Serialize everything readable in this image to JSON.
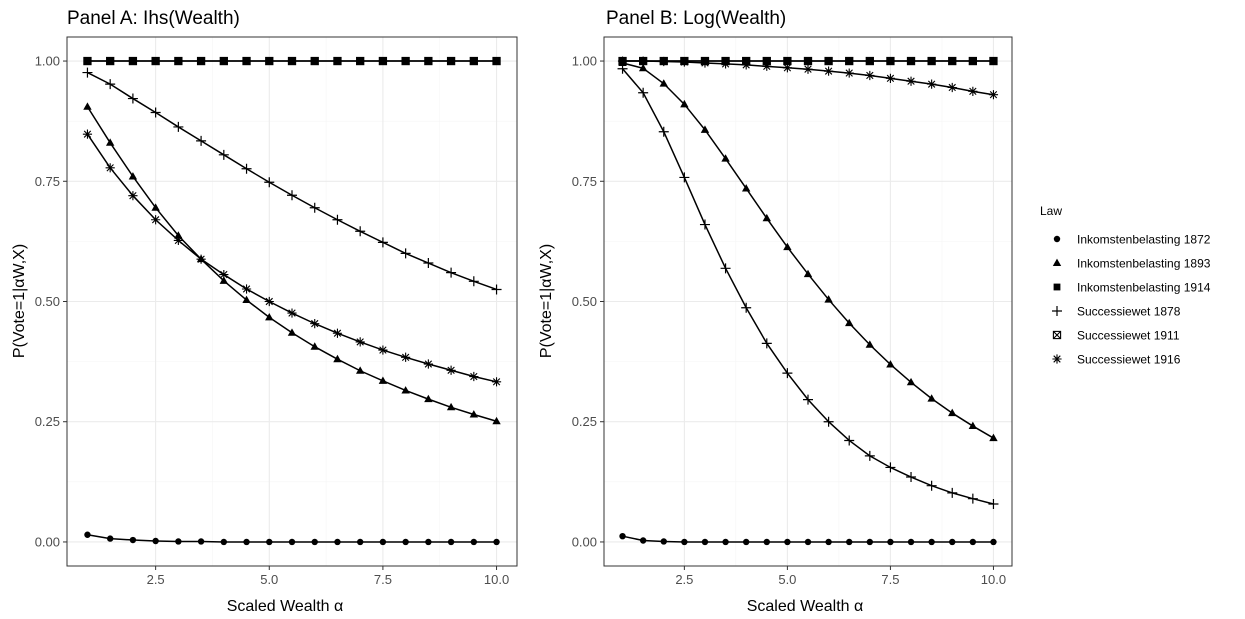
{
  "legend": {
    "title": "Law",
    "entries": [
      {
        "label": "Inkomstenbelasting 1872",
        "shape": "circle"
      },
      {
        "label": "Inkomstenbelasting 1893",
        "shape": "triangle"
      },
      {
        "label": "Inkomstenbelasting 1914",
        "shape": "square"
      },
      {
        "label": "Successiewet 1878",
        "shape": "plus"
      },
      {
        "label": "Successiewet 1911",
        "shape": "boxx"
      },
      {
        "label": "Successiewet 1916",
        "shape": "asterisk"
      }
    ]
  },
  "chart_data": [
    {
      "type": "line",
      "title": "Panel A: Ihs(Wealth)",
      "xlabel": "Scaled Wealth α",
      "ylabel": "P(Vote=1|αW,X)",
      "xlim": [
        0.55,
        10.45
      ],
      "ylim": [
        -0.05,
        1.05
      ],
      "xticks": [
        2.5,
        5.0,
        7.5,
        10.0
      ],
      "xtick_labels": [
        "2.5",
        "5.0",
        "7.5",
        "10.0"
      ],
      "yticks": [
        0,
        0.25,
        0.5,
        0.75,
        1.0
      ],
      "ytick_labels": [
        "0.00",
        "0.25",
        "0.50",
        "0.75",
        "1.00"
      ],
      "grid": true,
      "x": [
        1,
        1.5,
        2,
        2.5,
        3,
        3.5,
        4,
        4.5,
        5,
        5.5,
        6,
        6.5,
        7,
        7.5,
        8,
        8.5,
        9,
        9.5,
        10
      ],
      "series": [
        {
          "name": "Inkomstenbelasting 1872",
          "shape": "circle",
          "values": [
            0.015,
            0.007,
            0.004,
            0.002,
            0.001,
            0.001,
            0,
            0,
            0,
            0,
            0,
            0,
            0,
            0,
            0,
            0,
            0,
            0,
            0
          ]
        },
        {
          "name": "Inkomstenbelasting 1893",
          "shape": "triangle",
          "values": [
            0.905,
            0.83,
            0.76,
            0.695,
            0.637,
            0.588,
            0.543,
            0.503,
            0.467,
            0.435,
            0.406,
            0.38,
            0.356,
            0.335,
            0.315,
            0.297,
            0.28,
            0.265,
            0.251
          ]
        },
        {
          "name": "Inkomstenbelasting 1914",
          "shape": "square",
          "values": [
            1,
            1,
            1,
            1,
            1,
            1,
            1,
            1,
            1,
            1,
            1,
            1,
            1,
            1,
            1,
            1,
            1,
            1,
            1
          ]
        },
        {
          "name": "Successiewet 1878",
          "shape": "plus",
          "values": [
            0.976,
            0.952,
            0.922,
            0.893,
            0.863,
            0.834,
            0.805,
            0.776,
            0.748,
            0.721,
            0.695,
            0.67,
            0.646,
            0.623,
            0.6,
            0.58,
            0.56,
            0.542,
            0.525
          ]
        },
        {
          "name": "Successiewet 1911",
          "shape": "boxx",
          "values": [
            1,
            1,
            1,
            1,
            1,
            1,
            1,
            1,
            1,
            1,
            1,
            1,
            1,
            1,
            1,
            1,
            1,
            1,
            1
          ]
        },
        {
          "name": "Successiewet 1916",
          "shape": "asterisk",
          "values": [
            0.848,
            0.778,
            0.72,
            0.67,
            0.627,
            0.588,
            0.556,
            0.526,
            0.5,
            0.476,
            0.454,
            0.434,
            0.416,
            0.399,
            0.384,
            0.37,
            0.357,
            0.344,
            0.333
          ]
        }
      ]
    },
    {
      "type": "line",
      "title": "Panel B: Log(Wealth)",
      "xlabel": "Scaled Wealth α",
      "ylabel": "P(Vote=1|αW,X)",
      "xlim": [
        0.55,
        10.45
      ],
      "ylim": [
        -0.05,
        1.05
      ],
      "xticks": [
        2.5,
        5.0,
        7.5,
        10.0
      ],
      "xtick_labels": [
        "2.5",
        "5.0",
        "7.5",
        "10.0"
      ],
      "yticks": [
        0,
        0.25,
        0.5,
        0.75,
        1.0
      ],
      "ytick_labels": [
        "0.00",
        "0.25",
        "0.50",
        "0.75",
        "1.00"
      ],
      "grid": true,
      "x": [
        1,
        1.5,
        2,
        2.5,
        3,
        3.5,
        4,
        4.5,
        5,
        5.5,
        6,
        6.5,
        7,
        7.5,
        8,
        8.5,
        9,
        9.5,
        10
      ],
      "series": [
        {
          "name": "Inkomstenbelasting 1872",
          "shape": "circle",
          "values": [
            0.012,
            0.003,
            0.001,
            0,
            0,
            0,
            0,
            0,
            0,
            0,
            0,
            0,
            0,
            0,
            0,
            0,
            0,
            0,
            0
          ]
        },
        {
          "name": "Inkomstenbelasting 1893",
          "shape": "triangle",
          "values": [
            0.996,
            0.985,
            0.953,
            0.91,
            0.857,
            0.797,
            0.735,
            0.673,
            0.613,
            0.557,
            0.504,
            0.455,
            0.41,
            0.369,
            0.332,
            0.298,
            0.268,
            0.241,
            0.216
          ]
        },
        {
          "name": "Inkomstenbelasting 1914",
          "shape": "square",
          "values": [
            1,
            1,
            1,
            1,
            1,
            1,
            1,
            1,
            1,
            1,
            1,
            1,
            1,
            1,
            1,
            1,
            1,
            1,
            1
          ]
        },
        {
          "name": "Successiewet 1878",
          "shape": "plus",
          "values": [
            0.984,
            0.934,
            0.853,
            0.758,
            0.66,
            0.569,
            0.487,
            0.413,
            0.351,
            0.296,
            0.25,
            0.211,
            0.179,
            0.155,
            0.135,
            0.117,
            0.102,
            0.09,
            0.079
          ]
        },
        {
          "name": "Successiewet 1911",
          "shape": "boxx",
          "values": [
            1,
            1,
            1,
            1,
            1,
            1,
            1,
            1,
            1,
            1,
            1,
            1,
            1,
            1,
            1,
            1,
            1,
            1,
            1
          ]
        },
        {
          "name": "Successiewet 1916",
          "shape": "asterisk",
          "values": [
            1,
            1,
            0.999,
            0.998,
            0.996,
            0.994,
            0.992,
            0.989,
            0.986,
            0.983,
            0.979,
            0.975,
            0.97,
            0.964,
            0.958,
            0.952,
            0.945,
            0.937,
            0.93
          ]
        }
      ]
    }
  ]
}
